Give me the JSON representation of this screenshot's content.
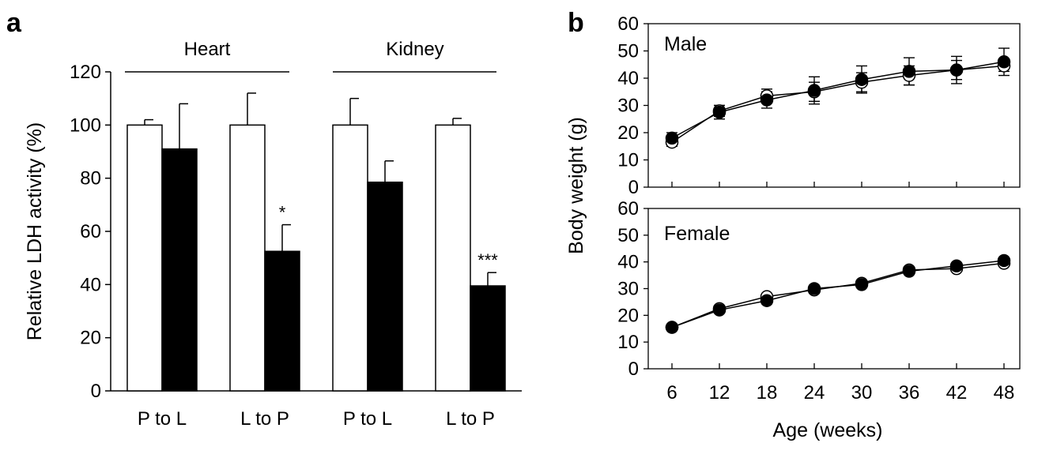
{
  "panel_labels": [
    "a",
    "b"
  ],
  "chart_data": [
    {
      "type": "bar",
      "panel": "a",
      "ylabel": "Relative LDH activity (%)",
      "ylim": [
        0,
        120
      ],
      "yticks": [
        0,
        20,
        40,
        60,
        80,
        100,
        120
      ],
      "groups": [
        {
          "name": "Heart",
          "categories": [
            "P to L",
            "L to P"
          ]
        },
        {
          "name": "Kidney",
          "categories": [
            "P to L",
            "L to P"
          ]
        }
      ],
      "categories": [
        "P to L",
        "L to P",
        "P to L",
        "L to P"
      ],
      "series": [
        {
          "fill": "#ffffff",
          "values": [
            100,
            100,
            100,
            100
          ],
          "errors": [
            2,
            12,
            10,
            2.5
          ]
        },
        {
          "fill": "#000000",
          "values": [
            91,
            52.5,
            78.5,
            39.5
          ],
          "errors": [
            17,
            10,
            8,
            5
          ]
        }
      ],
      "annotations": [
        "",
        "*",
        "",
        "***"
      ]
    },
    {
      "type": "line",
      "panel": "b",
      "xlabel": "Age (weeks)",
      "ylabel": "Body weight (g)",
      "x": [
        6,
        12,
        18,
        24,
        30,
        36,
        42,
        48
      ],
      "xlim": [
        3,
        50
      ],
      "subplots": [
        {
          "title": "Male",
          "ylim": [
            0,
            60
          ],
          "yticks": [
            0,
            10,
            20,
            30,
            40,
            50,
            60
          ],
          "series": [
            {
              "marker": "open-circle",
              "values": [
                16.5,
                28,
                33.5,
                35,
                38.5,
                41,
                43,
                44.5
              ],
              "errors": [
                1.5,
                2,
                2.5,
                3.5,
                3.5,
                3.5,
                3.5,
                2
              ]
            },
            {
              "marker": "filled-circle",
              "values": [
                18,
                27.5,
                32,
                35.5,
                39.5,
                42.5,
                43,
                46
              ],
              "errors": [
                2,
                2.5,
                3,
                5,
                5,
                5,
                5,
                5
              ]
            }
          ]
        },
        {
          "title": "Female",
          "ylim": [
            0,
            60
          ],
          "yticks": [
            0,
            10,
            20,
            30,
            40,
            50,
            60
          ],
          "series": [
            {
              "marker": "open-circle",
              "values": [
                15.5,
                22.5,
                27,
                29.5,
                32,
                37,
                37.5,
                39.5
              ],
              "errors": [
                0.8,
                1,
                1.2,
                1.2,
                1,
                1,
                1,
                1
              ]
            },
            {
              "marker": "filled-circle",
              "values": [
                15.5,
                22,
                25.5,
                30,
                31.5,
                36.5,
                38.5,
                40.5
              ],
              "errors": [
                0.8,
                1,
                1.2,
                1.2,
                1,
                1,
                1,
                1
              ]
            }
          ]
        }
      ]
    }
  ]
}
